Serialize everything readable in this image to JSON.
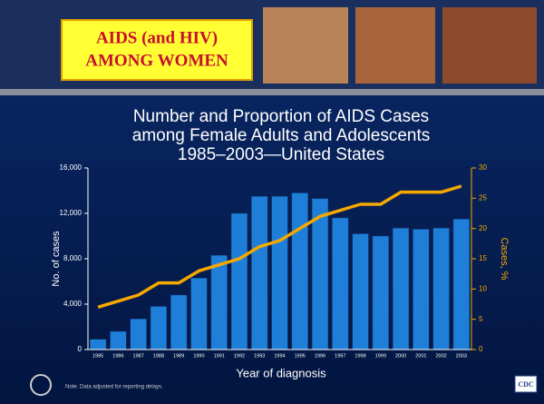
{
  "header": {
    "title": [
      "AIDS (and HIV)",
      "AMONG WOMEN"
    ]
  },
  "chart_data": {
    "type": "bar",
    "title": [
      "Number and Proportion of AIDS Cases",
      "among Female Adults and Adolescents",
      "1985–2003—United States"
    ],
    "xlabel": "Year of diagnosis",
    "ylabel": "No. of cases",
    "y2label": "Cases, %",
    "categories": [
      "1985",
      "1986",
      "1987",
      "1988",
      "1989",
      "1990",
      "1991",
      "1992",
      "1993",
      "1994",
      "1995",
      "1996",
      "1997",
      "1998",
      "1999",
      "2000",
      "2001",
      "2002",
      "2003"
    ],
    "series": [
      {
        "name": "No. of cases",
        "type": "bar",
        "color": "#1f7fd8",
        "values": [
          900,
          1600,
          2700,
          3800,
          4800,
          6300,
          8300,
          12000,
          13500,
          13500,
          13800,
          13300,
          11600,
          10200,
          10000,
          10700,
          10600,
          10700,
          11500
        ]
      },
      {
        "name": "Cases, %",
        "type": "line",
        "axis": "y2",
        "color": "#f5a800",
        "values": [
          7,
          8,
          9,
          11,
          11,
          13,
          14,
          15,
          17,
          18,
          20,
          22,
          23,
          24,
          24,
          26,
          26,
          26,
          27
        ]
      }
    ],
    "ylim": [
      0,
      16000
    ],
    "yticks": [
      0,
      {
        "value": 4000,
        "label": "4,000"
      },
      {
        "value": 8000,
        "label": "8,000"
      },
      {
        "value": 12000,
        "label": "12,000"
      },
      {
        "value": 16000,
        "label": "16,000"
      }
    ],
    "y2lim": [
      0,
      30
    ],
    "y2ticks": [
      0,
      5,
      10,
      15,
      20,
      25,
      30
    ],
    "note": "Note. Data adjusted for reporting delays.",
    "logo": "CDC"
  }
}
